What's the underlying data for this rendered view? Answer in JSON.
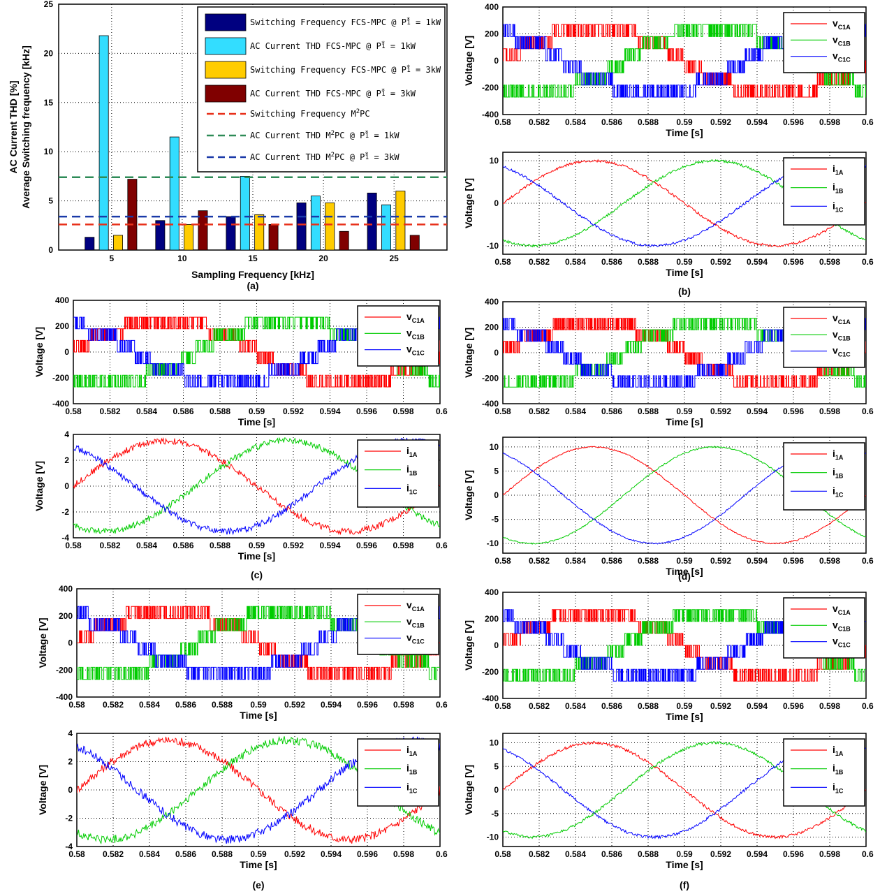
{
  "colors": {
    "red": "#ff0000",
    "green": "#00cc00",
    "blue": "#0000ff",
    "navy": "#000080",
    "cyan": "#33ddff",
    "gold": "#ffcc00",
    "maroon": "#800000",
    "ref_red": "#e8301a",
    "ref_green": "#2e8b57",
    "ref_blue": "#1a3aa8"
  },
  "chart_data": [
    {
      "id": "a",
      "type": "bar",
      "caption": "(a)",
      "xlabel": "Sampling Frequency [kHz]",
      "ylabel": [
        "AC Current THD [%]",
        "Average Switching frequency [kHz]"
      ],
      "categories": [
        "5",
        "10",
        "15",
        "20",
        "25"
      ],
      "ylim": [
        0,
        25
      ],
      "yticks": [
        "0",
        "5",
        "10",
        "15",
        "20",
        "25"
      ],
      "grid": true,
      "legend_position": "top-right",
      "series": [
        {
          "name": "Switching Frequency FCS-MPC @ P",
          "sup": "*",
          "sub": "1",
          "tail": " = 1kW",
          "color": "navy",
          "values": [
            1.3,
            3.0,
            3.4,
            4.8,
            5.8
          ]
        },
        {
          "name": "AC Current THD FCS-MPC @ P",
          "sup": "*",
          "sub": "1",
          "tail": " = 1kW",
          "color": "cyan",
          "values": [
            21.8,
            11.5,
            7.5,
            5.5,
            4.6
          ]
        },
        {
          "name": "Switching Frequency FCS-MPC @ P",
          "sup": "*",
          "sub": "1",
          "tail": " = 3kW",
          "color": "gold",
          "values": [
            1.5,
            2.6,
            3.6,
            4.8,
            6.0
          ]
        },
        {
          "name": "AC Current THD FCS-MPC @ P",
          "sup": "*",
          "sub": "1",
          "tail": " = 3kW",
          "color": "maroon",
          "values": [
            7.2,
            4.0,
            2.6,
            1.9,
            1.5
          ]
        }
      ],
      "reference_lines": [
        {
          "name": "Switching Frequency M",
          "sup": "2",
          "sub": "",
          "tail": "PC",
          "color": "ref_red",
          "value": 2.6
        },
        {
          "name": "AC Current THD M",
          "sup": "2",
          "sub": "",
          "tail": "PC @ P",
          "sup2": "*",
          "sub2": "1",
          "tail2": " = 1kW",
          "color": "ref_green",
          "value": 7.4
        },
        {
          "name": "AC Current THD M",
          "sup": "2",
          "sub": "",
          "tail": "PC @ P",
          "sup2": "*",
          "sub2": "1",
          "tail2": " = 3kW",
          "color": "ref_blue",
          "value": 3.4
        }
      ]
    },
    {
      "id": "b",
      "caption": "(b)",
      "plots": [
        {
          "type": "line",
          "kind": "voltage",
          "xlabel": "Time [s]",
          "ylabel": "Voltage [V]",
          "xlim": [
            0.58,
            0.6
          ],
          "ylim": [
            -400,
            400
          ],
          "yticks": [
            "-400",
            "-200",
            "0",
            "200",
            "400"
          ],
          "xticks": [
            "0.58",
            "0.582",
            "0.584",
            "0.586",
            "0.588",
            "0.59",
            "0.592",
            "0.594",
            "0.596",
            "0.598",
            "0.6"
          ],
          "grid": true,
          "legend_position": "top-right",
          "levels": [
            0,
            90,
            180,
            270
          ],
          "switching": 0.4,
          "series": [
            {
              "name": "v",
              "sub": "C1A",
              "color": "red",
              "phase_deg": 0
            },
            {
              "name": "v",
              "sub": "C1B",
              "color": "green",
              "phase_deg": -120
            },
            {
              "name": "v",
              "sub": "C1C",
              "color": "blue",
              "phase_deg": 120
            }
          ]
        },
        {
          "type": "line",
          "kind": "current",
          "xlabel": "Time [s]",
          "ylabel": "Voltage [V]",
          "xlim": [
            0.58,
            0.6
          ],
          "ylim": [
            -12,
            12
          ],
          "yticks": [
            "-10",
            "0",
            "10"
          ],
          "xticks": [
            "0.58",
            "0.582",
            "0.584",
            "0.586",
            "0.588",
            "0.59",
            "0.592",
            "0.594",
            "0.596",
            "0.598",
            "0.6"
          ],
          "grid": true,
          "legend_position": "top-right",
          "amplitude": 10,
          "ripple": 0.3,
          "series": [
            {
              "name": "i",
              "sub": "1A",
              "color": "red",
              "phase_deg": 0
            },
            {
              "name": "i",
              "sub": "1B",
              "color": "green",
              "phase_deg": -120
            },
            {
              "name": "i",
              "sub": "1C",
              "color": "blue",
              "phase_deg": 120
            }
          ]
        }
      ]
    },
    {
      "id": "c",
      "caption": "(c)",
      "plots": [
        {
          "type": "line",
          "kind": "voltage",
          "xlabel": "Time [s]",
          "ylabel": "Voltage [V]",
          "xlim": [
            0.58,
            0.6
          ],
          "ylim": [
            -400,
            400
          ],
          "yticks": [
            "-400",
            "-200",
            "0",
            "200",
            "400"
          ],
          "xticks": [
            "0.58",
            "0.582",
            "0.584",
            "0.586",
            "0.588",
            "0.59",
            "0.592",
            "0.594",
            "0.596",
            "0.598",
            "0.6"
          ],
          "grid": true,
          "legend_position": "top-right",
          "levels": [
            0,
            90,
            180,
            270
          ],
          "switching": 0.4,
          "series": [
            {
              "name": "v",
              "sub": "C1A",
              "color": "red",
              "phase_deg": 0
            },
            {
              "name": "v",
              "sub": "C1B",
              "color": "green",
              "phase_deg": -120
            },
            {
              "name": "v",
              "sub": "C1C",
              "color": "blue",
              "phase_deg": 120
            }
          ]
        },
        {
          "type": "line",
          "kind": "current",
          "xlabel": "Time [s]",
          "ylabel": "Voltage [V]",
          "xlim": [
            0.58,
            0.6
          ],
          "ylim": [
            -4,
            4
          ],
          "yticks": [
            "-4",
            "-2",
            "0",
            "2",
            "4"
          ],
          "xticks": [
            "0.58",
            "0.582",
            "0.584",
            "0.586",
            "0.588",
            "0.59",
            "0.592",
            "0.594",
            "0.596",
            "0.598",
            "0.6"
          ],
          "grid": true,
          "legend_position": "top-right",
          "amplitude": 3.5,
          "ripple": 0.25,
          "series": [
            {
              "name": "i",
              "sub": "1A",
              "color": "red",
              "phase_deg": 0
            },
            {
              "name": "i",
              "sub": "1B",
              "color": "green",
              "phase_deg": -120
            },
            {
              "name": "i",
              "sub": "1C",
              "color": "blue",
              "phase_deg": 120
            }
          ]
        }
      ]
    },
    {
      "id": "d",
      "caption": "(d)",
      "plots": [
        {
          "type": "line",
          "kind": "voltage",
          "xlabel": "Time [s]",
          "ylabel": "Voltage [V]",
          "xlim": [
            0.58,
            0.6
          ],
          "ylim": [
            -400,
            400
          ],
          "yticks": [
            "-400",
            "-200",
            "0",
            "200",
            "400"
          ],
          "xticks": [
            "0.58",
            "0.582",
            "0.584",
            "0.586",
            "0.588",
            "0.59",
            "0.592",
            "0.594",
            "0.596",
            "0.598",
            "0.6"
          ],
          "grid": true,
          "legend_position": "top-right",
          "levels": [
            0,
            90,
            180,
            270
          ],
          "switching": 0.4,
          "series": [
            {
              "name": "v",
              "sub": "C1A",
              "color": "red",
              "phase_deg": 0
            },
            {
              "name": "v",
              "sub": "C1B",
              "color": "green",
              "phase_deg": -120
            },
            {
              "name": "v",
              "sub": "C1C",
              "color": "blue",
              "phase_deg": 120
            }
          ]
        },
        {
          "type": "line",
          "kind": "current",
          "xlabel": "Time [s]",
          "ylabel": "Voltage [V]",
          "xlim": [
            0.58,
            0.6
          ],
          "ylim": [
            -12,
            12
          ],
          "yticks": [
            "-10",
            "-5",
            "0",
            "5",
            "10"
          ],
          "xticks": [
            "0.58",
            "0.582",
            "0.584",
            "0.586",
            "0.588",
            "0.59",
            "0.592",
            "0.594",
            "0.596",
            "0.598",
            "0.6"
          ],
          "grid": true,
          "legend_position": "top-right",
          "amplitude": 10,
          "ripple": 0.15,
          "series": [
            {
              "name": "i",
              "sub": "1A",
              "color": "red",
              "phase_deg": 0
            },
            {
              "name": "i",
              "sub": "1B",
              "color": "green",
              "phase_deg": -120
            },
            {
              "name": "i",
              "sub": "1C",
              "color": "blue",
              "phase_deg": 120
            }
          ]
        }
      ]
    },
    {
      "id": "e",
      "caption": "(e)",
      "plots": [
        {
          "type": "line",
          "kind": "voltage",
          "xlabel": "Time [s]",
          "ylabel": "Voltage [V]",
          "xlim": [
            0.58,
            0.6
          ],
          "ylim": [
            -400,
            400
          ],
          "yticks": [
            "-400",
            "-200",
            "0",
            "200",
            "400"
          ],
          "xticks": [
            "0.58",
            "0.582",
            "0.584",
            "0.586",
            "0.588",
            "0.59",
            "0.592",
            "0.594",
            "0.596",
            "0.598",
            "0.6"
          ],
          "grid": true,
          "legend_position": "top-right",
          "levels": [
            0,
            90,
            180,
            270
          ],
          "switching": 0.55,
          "series": [
            {
              "name": "v",
              "sub": "C1A",
              "color": "red",
              "phase_deg": 0
            },
            {
              "name": "v",
              "sub": "C1B",
              "color": "green",
              "phase_deg": -120
            },
            {
              "name": "v",
              "sub": "C1C",
              "color": "blue",
              "phase_deg": 120
            }
          ]
        },
        {
          "type": "line",
          "kind": "current",
          "xlabel": "Time [s]",
          "ylabel": "Voltage [V]",
          "xlim": [
            0.58,
            0.6
          ],
          "ylim": [
            -4,
            4
          ],
          "yticks": [
            "-4",
            "-2",
            "0",
            "2",
            "4"
          ],
          "xticks": [
            "0.58",
            "0.582",
            "0.584",
            "0.586",
            "0.588",
            "0.59",
            "0.592",
            "0.594",
            "0.596",
            "0.598",
            "0.6"
          ],
          "grid": true,
          "legend_position": "top-right",
          "amplitude": 3.5,
          "ripple": 0.3,
          "series": [
            {
              "name": "i",
              "sub": "1A",
              "color": "red",
              "phase_deg": 0
            },
            {
              "name": "i",
              "sub": "1B",
              "color": "green",
              "phase_deg": -120
            },
            {
              "name": "i",
              "sub": "1C",
              "color": "blue",
              "phase_deg": 120
            }
          ]
        }
      ]
    },
    {
      "id": "f",
      "caption": "(f)",
      "plots": [
        {
          "type": "line",
          "kind": "voltage",
          "xlabel": "Time [s]",
          "ylabel": "Voltage [V]",
          "xlim": [
            0.58,
            0.6
          ],
          "ylim": [
            -400,
            400
          ],
          "yticks": [
            "-400",
            "-200",
            "0",
            "200",
            "400"
          ],
          "xticks": [
            "0.58",
            "0.582",
            "0.584",
            "0.586",
            "0.588",
            "0.59",
            "0.592",
            "0.594",
            "0.596",
            "0.598",
            "0.6"
          ],
          "grid": true,
          "legend_position": "top-right",
          "levels": [
            0,
            90,
            180,
            270
          ],
          "switching": 0.45,
          "series": [
            {
              "name": "v",
              "sub": "C1A",
              "color": "red",
              "phase_deg": 0
            },
            {
              "name": "v",
              "sub": "C1B",
              "color": "green",
              "phase_deg": -120
            },
            {
              "name": "v",
              "sub": "C1C",
              "color": "blue",
              "phase_deg": 120
            }
          ]
        },
        {
          "type": "line",
          "kind": "current",
          "xlabel": "Time [s]",
          "ylabel": "Voltage [V]",
          "xlim": [
            0.58,
            0.6
          ],
          "ylim": [
            -12,
            12
          ],
          "yticks": [
            "-10",
            "-5",
            "0",
            "5",
            "10"
          ],
          "xticks": [
            "0.58",
            "0.582",
            "0.584",
            "0.586",
            "0.588",
            "0.59",
            "0.592",
            "0.594",
            "0.596",
            "0.598",
            "0.6"
          ],
          "grid": true,
          "legend_position": "top-right",
          "amplitude": 10,
          "ripple": 0.3,
          "series": [
            {
              "name": "i",
              "sub": "1A",
              "color": "red",
              "phase_deg": 0
            },
            {
              "name": "i",
              "sub": "1B",
              "color": "green",
              "phase_deg": -120
            },
            {
              "name": "i",
              "sub": "1C",
              "color": "blue",
              "phase_deg": 120
            }
          ]
        }
      ]
    }
  ]
}
